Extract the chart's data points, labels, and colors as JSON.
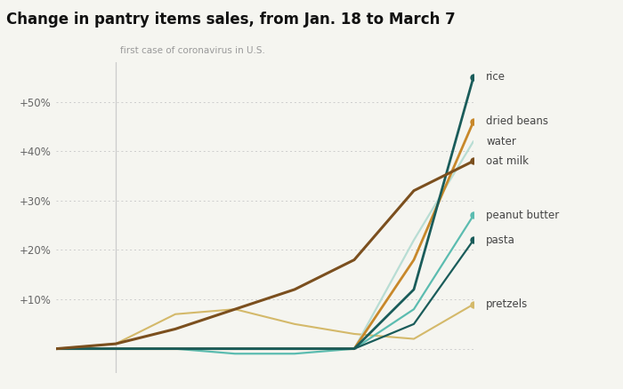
{
  "title": "Change in pantry items sales, from Jan. 18 to March 7",
  "annotation": "first case of coronavirus in U.S.",
  "bg_color": "#f5f5f0",
  "plot_bg_color": "#f5f5f0",
  "ytick_vals": [
    0,
    10,
    20,
    30,
    40,
    50
  ],
  "ylim": [
    -5,
    58
  ],
  "xlim": [
    0,
    49
  ],
  "vline_x": 7,
  "series": [
    {
      "name": "rice",
      "color": "#1a5c5a",
      "linewidth": 2.0,
      "x": [
        0,
        7,
        14,
        21,
        28,
        35,
        42,
        49
      ],
      "y": [
        0,
        0,
        0,
        0,
        0,
        0,
        12,
        55
      ],
      "marker_end": true,
      "zorder": 5
    },
    {
      "name": "dried beans",
      "color": "#c8882a",
      "linewidth": 2.0,
      "x": [
        0,
        7,
        14,
        21,
        28,
        35,
        42,
        49
      ],
      "y": [
        0,
        0,
        0,
        0,
        0,
        0,
        18,
        46
      ],
      "marker_end": true,
      "zorder": 4
    },
    {
      "name": "water",
      "color": "#b8ddd4",
      "linewidth": 1.6,
      "x": [
        0,
        7,
        14,
        21,
        28,
        35,
        42,
        49
      ],
      "y": [
        0,
        0,
        0,
        0,
        0,
        0,
        22,
        42
      ],
      "marker_end": false,
      "zorder": 3
    },
    {
      "name": "oat milk",
      "color": "#7B4F1E",
      "linewidth": 2.2,
      "x": [
        0,
        7,
        14,
        21,
        28,
        35,
        42,
        49
      ],
      "y": [
        0,
        1,
        4,
        8,
        12,
        18,
        32,
        38
      ],
      "marker_end": true,
      "zorder": 6
    },
    {
      "name": "peanut butter",
      "color": "#5bbcb0",
      "linewidth": 1.6,
      "x": [
        0,
        7,
        14,
        21,
        28,
        35,
        42,
        49
      ],
      "y": [
        0,
        0,
        0,
        -1,
        -1,
        0,
        8,
        27
      ],
      "marker_end": true,
      "zorder": 3
    },
    {
      "name": "pasta",
      "color": "#1a5c5a",
      "linewidth": 1.6,
      "x": [
        0,
        7,
        14,
        21,
        28,
        35,
        42,
        49
      ],
      "y": [
        0,
        0,
        0,
        0,
        0,
        0,
        5,
        22
      ],
      "marker_end": true,
      "zorder": 4
    },
    {
      "name": "pretzels",
      "color": "#d4b96a",
      "linewidth": 1.5,
      "x": [
        0,
        7,
        14,
        21,
        28,
        35,
        42,
        49
      ],
      "y": [
        0,
        1,
        7,
        8,
        5,
        3,
        2,
        9
      ],
      "marker_end": true,
      "zorder": 2
    }
  ],
  "label_y_map": {
    "rice": 55,
    "dried beans": 46,
    "water": 42,
    "oat milk": 38,
    "peanut butter": 27,
    "pasta": 22,
    "pretzels": 9
  },
  "label_fontsize": 8.5,
  "title_fontsize": 12,
  "annotation_fontsize": 7.5
}
